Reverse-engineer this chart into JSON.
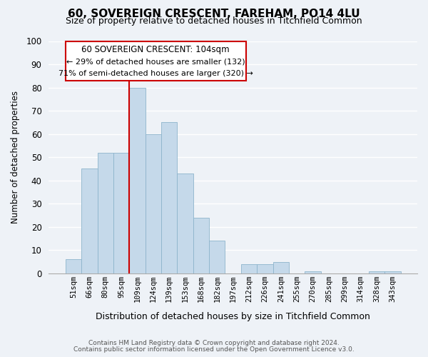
{
  "title": "60, SOVEREIGN CRESCENT, FAREHAM, PO14 4LU",
  "subtitle": "Size of property relative to detached houses in Titchfield Common",
  "xlabel": "Distribution of detached houses by size in Titchfield Common",
  "ylabel": "Number of detached properties",
  "bar_labels": [
    "51sqm",
    "66sqm",
    "80sqm",
    "95sqm",
    "109sqm",
    "124sqm",
    "139sqm",
    "153sqm",
    "168sqm",
    "182sqm",
    "197sqm",
    "212sqm",
    "226sqm",
    "241sqm",
    "255sqm",
    "270sqm",
    "285sqm",
    "299sqm",
    "314sqm",
    "328sqm",
    "343sqm"
  ],
  "bar_values": [
    6,
    45,
    52,
    52,
    80,
    60,
    65,
    43,
    24,
    14,
    0,
    4,
    4,
    5,
    0,
    1,
    0,
    0,
    0,
    1,
    1
  ],
  "bar_color": "#c5d9ea",
  "bar_edge_color": "#8db4cc",
  "vline_color": "#cc0000",
  "ylim": [
    0,
    100
  ],
  "yticks": [
    0,
    10,
    20,
    30,
    40,
    50,
    60,
    70,
    80,
    90,
    100
  ],
  "annotation_title": "60 SOVEREIGN CRESCENT: 104sqm",
  "annotation_line1": "← 29% of detached houses are smaller (132)",
  "annotation_line2": "71% of semi-detached houses are larger (320) →",
  "annotation_box_color": "#ffffff",
  "annotation_box_edge": "#cc0000",
  "footer_line1": "Contains HM Land Registry data © Crown copyright and database right 2024.",
  "footer_line2": "Contains public sector information licensed under the Open Government Licence v3.0.",
  "bg_color": "#eef2f7",
  "grid_color": "#ffffff",
  "title_fontsize": 11,
  "subtitle_fontsize": 9
}
